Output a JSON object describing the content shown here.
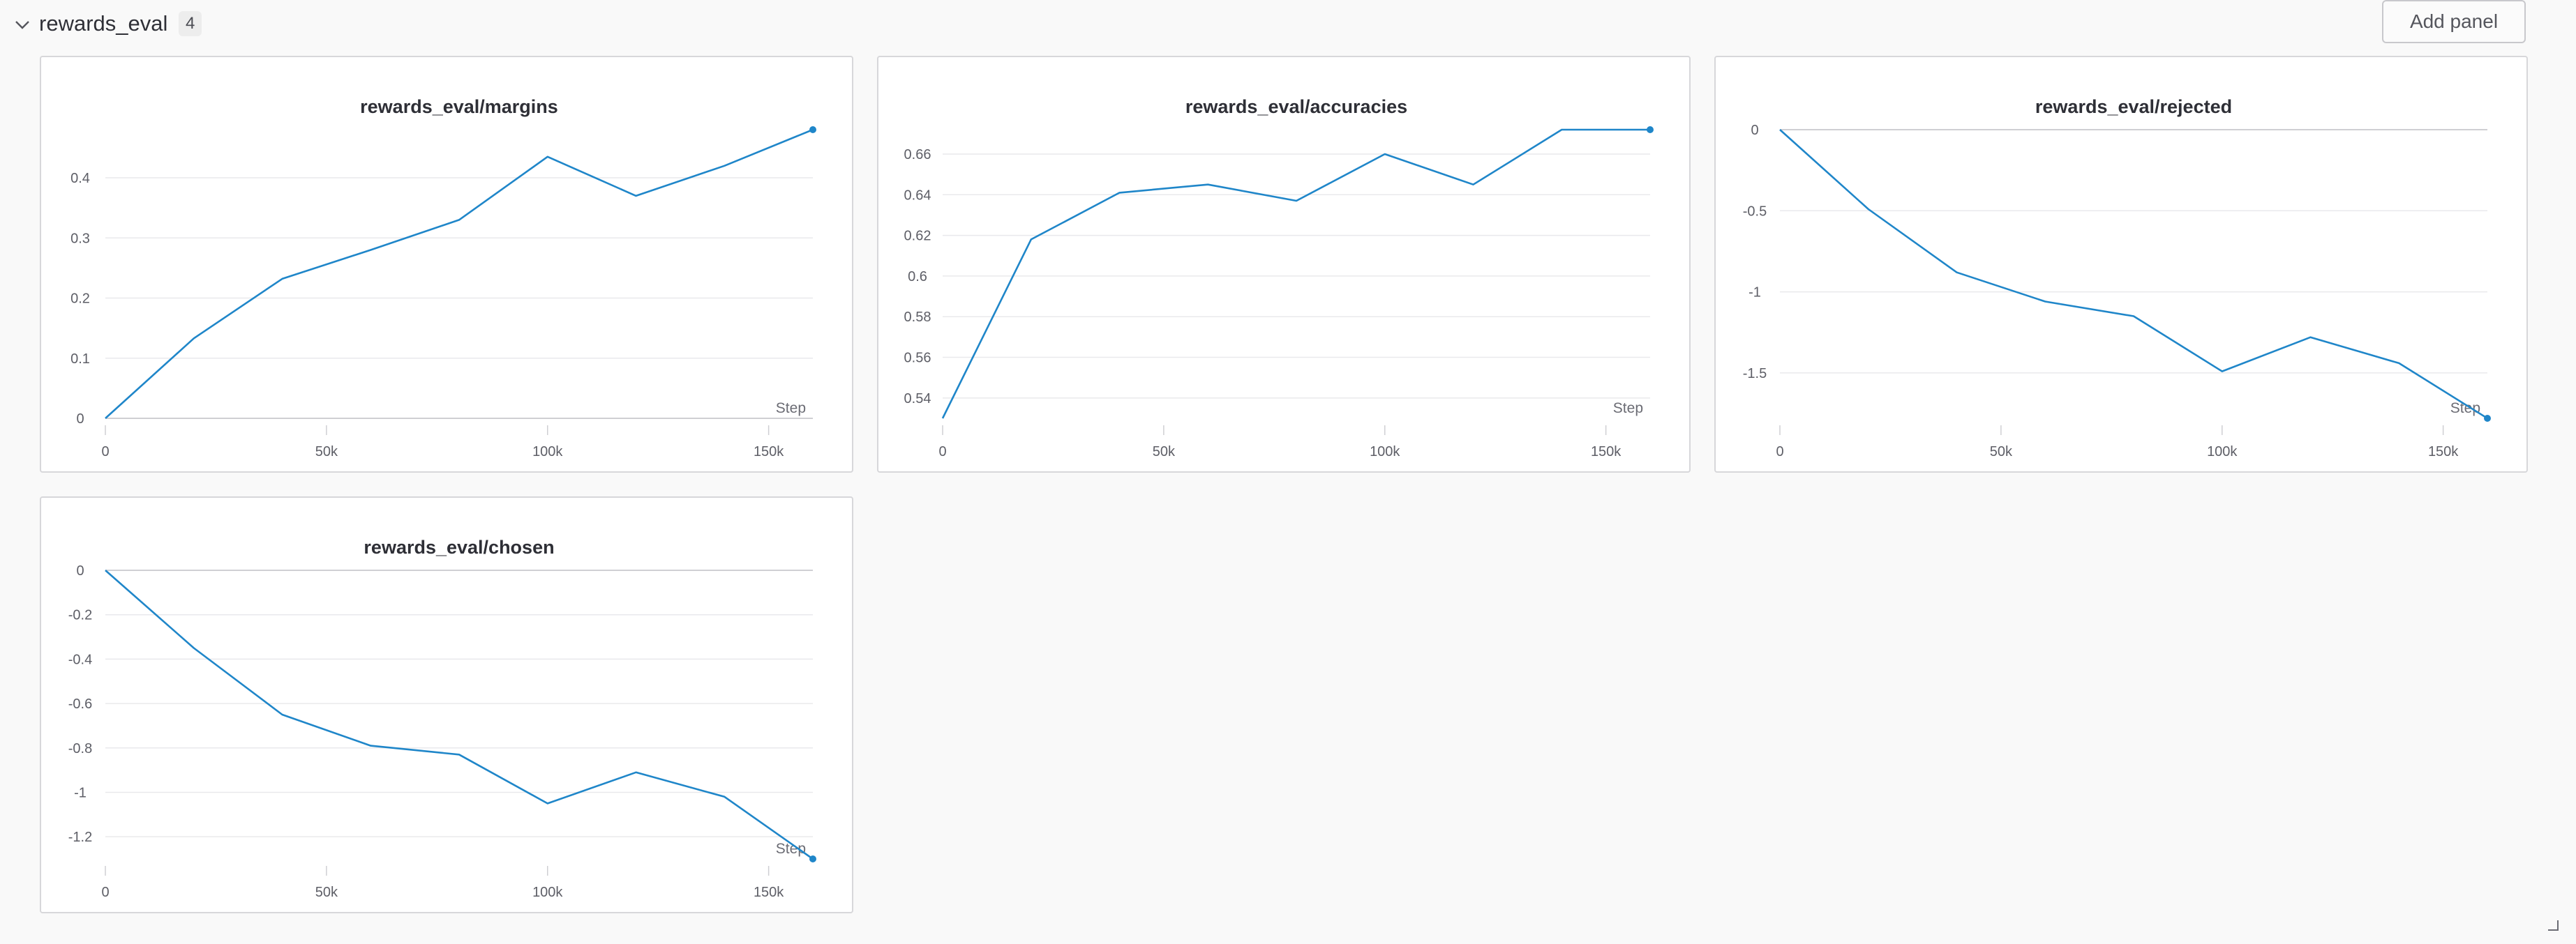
{
  "section": {
    "title": "rewards_eval",
    "count": "4",
    "add_panel_label": "Add panel"
  },
  "colors": {
    "line": "#1f86c9",
    "grid": "#e9e9ec",
    "axis": "#cfcfd3"
  },
  "icons": {
    "collapse": "chevron-down-icon",
    "resize": "resize-corner-icon"
  },
  "chart_data": [
    {
      "type": "line",
      "title": "rewards_eval/margins",
      "xlabel": "Step",
      "ylabel": "",
      "xlim": [
        0,
        160000
      ],
      "ylim": [
        0,
        0.48
      ],
      "x_ticks": [
        0,
        50000,
        100000,
        150000
      ],
      "x_tick_labels": [
        "0",
        "50k",
        "100k",
        "150k"
      ],
      "y_ticks": [
        0,
        0.1,
        0.2,
        0.3,
        0.4
      ],
      "y_tick_labels": [
        "0",
        "0.1",
        "0.2",
        "0.3",
        "0.4"
      ],
      "grid": true,
      "series": [
        {
          "x": [
            0,
            20000,
            40000,
            60000,
            80000,
            100000,
            120000,
            140000,
            160000
          ],
          "values": [
            0.0,
            0.133,
            0.232,
            0.28,
            0.33,
            0.435,
            0.37,
            0.42,
            0.48
          ]
        }
      ]
    },
    {
      "type": "line",
      "title": "rewards_eval/accuracies",
      "xlabel": "Step",
      "ylabel": "",
      "xlim": [
        0,
        160000
      ],
      "ylim": [
        0.53,
        0.672
      ],
      "x_ticks": [
        0,
        50000,
        100000,
        150000
      ],
      "x_tick_labels": [
        "0",
        "50k",
        "100k",
        "150k"
      ],
      "y_ticks": [
        0.54,
        0.56,
        0.58,
        0.6,
        0.62,
        0.64,
        0.66
      ],
      "y_tick_labels": [
        "0.54",
        "0.56",
        "0.58",
        "0.6",
        "0.62",
        "0.64",
        "0.66"
      ],
      "grid": true,
      "series": [
        {
          "x": [
            0,
            20000,
            40000,
            60000,
            80000,
            100000,
            120000,
            140000,
            160000
          ],
          "values": [
            0.53,
            0.618,
            0.641,
            0.645,
            0.637,
            0.66,
            0.645,
            0.672,
            0.672
          ]
        }
      ]
    },
    {
      "type": "line",
      "title": "rewards_eval/rejected",
      "xlabel": "Step",
      "ylabel": "",
      "xlim": [
        0,
        160000
      ],
      "ylim": [
        -1.78,
        0
      ],
      "x_ticks": [
        0,
        50000,
        100000,
        150000
      ],
      "x_tick_labels": [
        "0",
        "50k",
        "100k",
        "150k"
      ],
      "y_ticks": [
        0,
        -0.5,
        -1,
        -1.5
      ],
      "y_tick_labels": [
        "0",
        "-0.5",
        "-1",
        "-1.5"
      ],
      "grid": true,
      "series": [
        {
          "x": [
            0,
            20000,
            40000,
            60000,
            80000,
            100000,
            120000,
            140000,
            160000
          ],
          "values": [
            0.0,
            -0.49,
            -0.88,
            -1.06,
            -1.15,
            -1.49,
            -1.28,
            -1.44,
            -1.78
          ]
        }
      ]
    },
    {
      "type": "line",
      "title": "rewards_eval/chosen",
      "xlabel": "Step",
      "ylabel": "",
      "xlim": [
        0,
        160000
      ],
      "ylim": [
        -1.3,
        0
      ],
      "x_ticks": [
        0,
        50000,
        100000,
        150000
      ],
      "x_tick_labels": [
        "0",
        "50k",
        "100k",
        "150k"
      ],
      "y_ticks": [
        0,
        -0.2,
        -0.4,
        -0.6,
        -0.8,
        -1,
        -1.2
      ],
      "y_tick_labels": [
        "0",
        "-0.2",
        "-0.4",
        "-0.6",
        "-0.8",
        "-1",
        "-1.2"
      ],
      "grid": true,
      "series": [
        {
          "x": [
            0,
            20000,
            40000,
            60000,
            80000,
            100000,
            120000,
            140000,
            160000
          ],
          "values": [
            0.0,
            -0.35,
            -0.65,
            -0.79,
            -0.83,
            -1.05,
            -0.91,
            -1.02,
            -1.3
          ]
        }
      ]
    }
  ]
}
